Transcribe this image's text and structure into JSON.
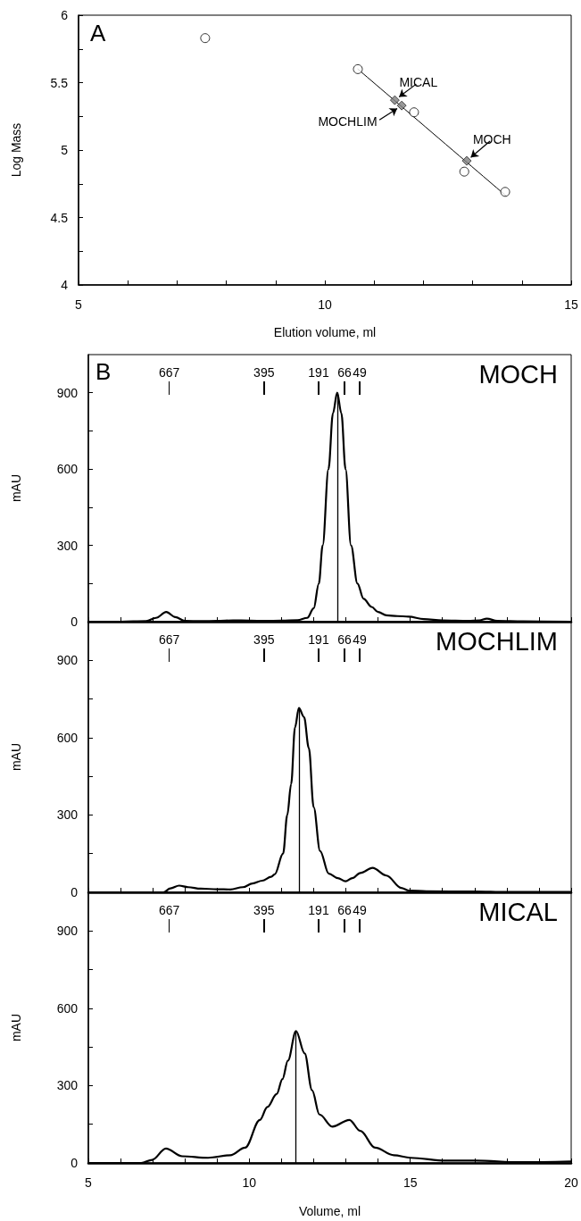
{
  "chart_data": [
    {
      "type": "scatter",
      "title": "A",
      "xlabel": "Elution volume, ml",
      "ylabel": "Log Mass",
      "xlim": [
        5,
        15
      ],
      "ylim": [
        4,
        6
      ],
      "xticks": [
        5,
        {
          "value": 6,
          "label": null
        },
        {
          "value": 7,
          "label": null
        },
        {
          "value": 8,
          "label": null
        },
        {
          "value": 9,
          "label": null
        },
        10,
        {
          "value": 11,
          "label": null
        },
        {
          "value": 12,
          "label": null
        },
        {
          "value": 13,
          "label": null
        },
        {
          "value": 14,
          "label": null
        },
        15
      ],
      "yticks": [
        4,
        {
          "value": 4.25,
          "label": null
        },
        4.5,
        {
          "value": 4.75,
          "label": null
        },
        5,
        {
          "value": 5.25,
          "label": null
        },
        5.5,
        {
          "value": 5.75,
          "label": null
        },
        6
      ],
      "series": [
        {
          "marker": "circle",
          "color": "#ffffff",
          "x": [
            7.57,
            10.67,
            11.81,
            12.83,
            13.66
          ],
          "values": [
            5.83,
            5.6,
            5.28,
            4.84,
            4.69
          ]
        },
        {
          "marker": "diamond",
          "color": "#808080",
          "x": [
            11.42,
            11.56,
            12.88
          ],
          "values": [
            5.37,
            5.33,
            4.92
          ]
        },
        {
          "type": "line",
          "marker": "none",
          "color": "#000000",
          "x": [
            10.67,
            13.68
          ],
          "values": [
            5.6,
            4.66
          ]
        }
      ],
      "annotations": [
        {
          "text": "MICAL",
          "x": 11.42,
          "y": 5.37
        },
        {
          "text": "MOCHLIM",
          "x": 11.56,
          "y": 5.33
        },
        {
          "text": "MOCH",
          "x": 12.88,
          "y": 4.92
        }
      ],
      "grid": false
    },
    {
      "type": "line",
      "title": "MOCH",
      "ylabel": "mAU",
      "xlim": [
        5,
        20
      ],
      "ylim": [
        0,
        1050
      ],
      "tick_labels": "y",
      "marker": "none",
      "line_style": "solid",
      "xticks": [
        5,
        {
          "value": 6,
          "label": null
        },
        {
          "value": 7,
          "label": null
        },
        {
          "value": 8,
          "label": null
        },
        {
          "value": 9,
          "label": null
        },
        10,
        {
          "value": 11,
          "label": null
        },
        {
          "value": 12,
          "label": null
        },
        {
          "value": 13,
          "label": null
        },
        {
          "value": 14,
          "label": null
        },
        15,
        {
          "value": 16,
          "label": null
        },
        {
          "value": 17,
          "label": null
        },
        {
          "value": 18,
          "label": null
        },
        {
          "value": 19,
          "label": null
        },
        20
      ],
      "yticks": [
        0,
        {
          "value": 150,
          "label": null
        },
        300,
        {
          "value": 450,
          "label": null
        },
        600,
        {
          "value": 750,
          "label": null
        },
        900
      ],
      "x": [
        5,
        6,
        6.8,
        7.1,
        7.42,
        7.7,
        8,
        8.5,
        9,
        9.5,
        10,
        10.5,
        11,
        11.5,
        11.8,
        12,
        12.16,
        12.28,
        12.46,
        12.6,
        12.73,
        12.86,
        12.99,
        13.16,
        13.36,
        13.55,
        13.8,
        14,
        14.26,
        14.6,
        14.95,
        15.42,
        16,
        16.8,
        17.15,
        17.38,
        17.7,
        18.5,
        20
      ],
      "series": [
        {
          "color": "#000000",
          "values": [
            0,
            0,
            2,
            15,
            38,
            18,
            3,
            2,
            3,
            5,
            4,
            3,
            4,
            6,
            15,
            52,
            150,
            300,
            600,
            820,
            900,
            820,
            600,
            300,
            150,
            90,
            58,
            38,
            25,
            22,
            20,
            10,
            5,
            3,
            5,
            12,
            3,
            1,
            0
          ]
        }
      ],
      "ref_lines": [
        {
          "axis": "x",
          "value": 12.73
        }
      ],
      "annotations": [
        "B",
        "667",
        "395",
        "191",
        "66",
        "49"
      ],
      "grid": false
    },
    {
      "type": "line",
      "title": "MOCHLIM",
      "ylabel": "mAU",
      "xlim": [
        5,
        20
      ],
      "ylim": [
        0,
        1050
      ],
      "tick_labels": "y",
      "marker": "none",
      "line_style": "solid",
      "xticks": [
        5,
        {
          "value": 6,
          "label": null
        },
        {
          "value": 7,
          "label": null
        },
        {
          "value": 8,
          "label": null
        },
        {
          "value": 9,
          "label": null
        },
        10,
        {
          "value": 11,
          "label": null
        },
        {
          "value": 12,
          "label": null
        },
        {
          "value": 13,
          "label": null
        },
        {
          "value": 14,
          "label": null
        },
        15,
        {
          "value": 16,
          "label": null
        },
        {
          "value": 17,
          "label": null
        },
        {
          "value": 18,
          "label": null
        },
        {
          "value": 19,
          "label": null
        },
        20
      ],
      "yticks": [
        0,
        {
          "value": 150,
          "label": null
        },
        300,
        {
          "value": 450,
          "label": null
        },
        600,
        {
          "value": 750,
          "label": null
        },
        900
      ],
      "x": [
        5,
        6,
        7,
        7.33,
        7.55,
        7.82,
        8.1,
        8.49,
        9,
        9.41,
        9.8,
        10.1,
        10.4,
        10.68,
        10.79,
        11.05,
        11.18,
        11.3,
        11.42,
        11.54,
        11.7,
        11.85,
        12,
        12.2,
        12.47,
        12.75,
        12.99,
        13.2,
        13.45,
        13.83,
        14.26,
        14.72,
        14.95,
        15.5,
        17,
        18,
        20
      ],
      "series": [
        {
          "color": "#000000",
          "values": [
            0,
            0,
            0,
            0,
            15,
            26,
            20,
            14,
            12,
            11,
            20,
            34,
            45,
            60,
            70,
            150,
            300,
            420,
            640,
            715,
            680,
            560,
            330,
            160,
            72,
            55,
            43,
            55,
            75,
            95,
            65,
            17,
            7,
            4,
            3,
            1,
            1
          ]
        }
      ],
      "ref_lines": [
        {
          "axis": "x",
          "value": 11.54
        }
      ],
      "annotations": [
        "667",
        "395",
        "191",
        "66",
        "49"
      ],
      "grid": false
    },
    {
      "type": "line",
      "title": "MICAL",
      "xlabel": "Volume, ml",
      "ylabel": "mAU",
      "xlim": [
        5,
        20
      ],
      "ylim": [
        0,
        1050
      ],
      "marker": "none",
      "line_style": "solid",
      "xticks": [
        5,
        {
          "value": 6,
          "label": null
        },
        {
          "value": 7,
          "label": null
        },
        {
          "value": 8,
          "label": null
        },
        {
          "value": 9,
          "label": null
        },
        10,
        {
          "value": 11,
          "label": null
        },
        {
          "value": 12,
          "label": null
        },
        {
          "value": 13,
          "label": null
        },
        {
          "value": 14,
          "label": null
        },
        15,
        {
          "value": 16,
          "label": null
        },
        {
          "value": 17,
          "label": null
        },
        {
          "value": 18,
          "label": null
        },
        {
          "value": 19,
          "label": null
        },
        20
      ],
      "yticks": [
        0,
        {
          "value": 150,
          "label": null
        },
        300,
        {
          "value": 450,
          "label": null
        },
        600,
        {
          "value": 750,
          "label": null
        },
        900
      ],
      "x": [
        5,
        6,
        6.64,
        6.98,
        7.41,
        7.91,
        8.72,
        9.41,
        9.87,
        10.33,
        10.56,
        10.85,
        11.03,
        11.2,
        11.45,
        11.72,
        11.95,
        12.18,
        12.58,
        13.11,
        13.45,
        13.91,
        14.49,
        15.01,
        16.11,
        17.03,
        18.42,
        20
      ],
      "series": [
        {
          "color": "#000000",
          "values": [
            0,
            0,
            0,
            12,
            56,
            26,
            20,
            30,
            59,
            167,
            217,
            267,
            325,
            397,
            512,
            425,
            282,
            188,
            141,
            167,
            124,
            59,
            30,
            20,
            9,
            9,
            3,
            6
          ]
        }
      ],
      "ref_lines": [
        {
          "axis": "x",
          "value": 11.45
        }
      ],
      "annotations": [
        "667",
        "395",
        "191",
        "66",
        "49"
      ],
      "grid": false
    }
  ]
}
